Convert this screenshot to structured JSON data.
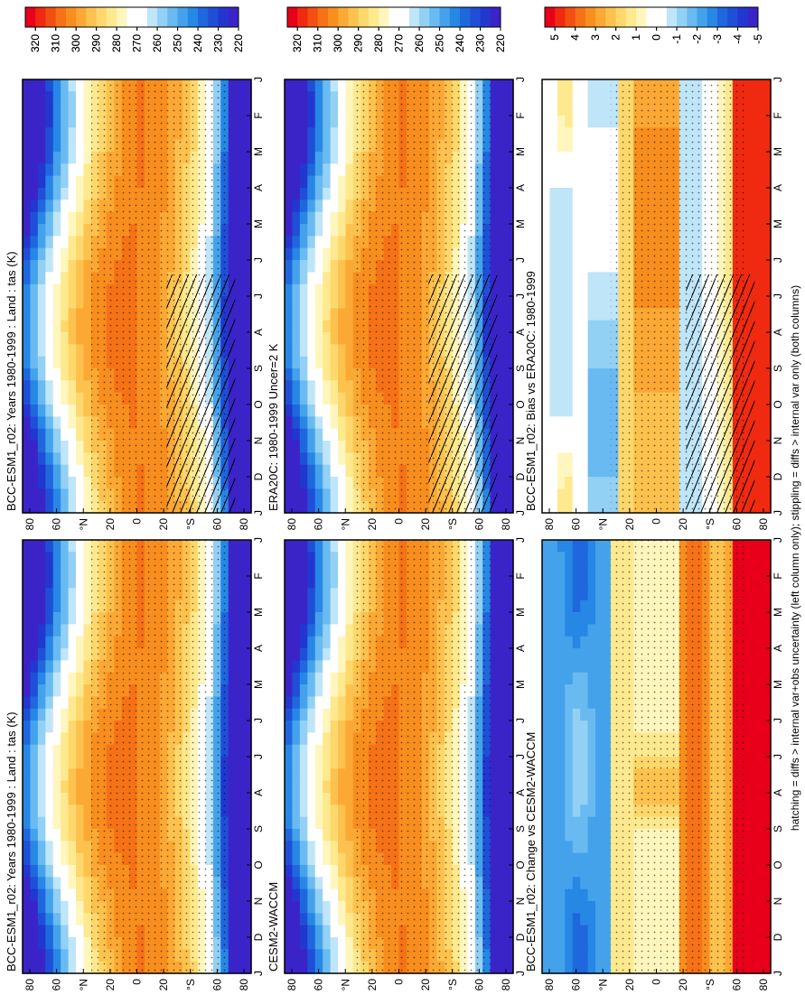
{
  "figure": {
    "footer": "hatching = diffs > internal var+obs uncertainty (left column only); stippling = diffs > internal var only (both columns)",
    "month_ticks": [
      "J",
      "F",
      "M",
      "A",
      "M",
      "J",
      "J",
      "A",
      "S",
      "O",
      "N",
      "D",
      "J"
    ],
    "lat_ticks": [
      "80",
      "60",
      "N",
      "20",
      "0",
      "20",
      "S",
      "60",
      "80"
    ],
    "lat_prefix": "°",
    "scale_abs": {
      "labels": [
        "320",
        "310",
        "300",
        "290",
        "280",
        "270",
        "260",
        "250",
        "240",
        "230",
        "220"
      ],
      "colors": [
        "#e8001a",
        "#ef2a10",
        "#f24f12",
        "#f67216",
        "#f88e1e",
        "#fba934",
        "#fdc24e",
        "#fed86c",
        "#fee98f",
        "#fff6bd",
        "#ffffff",
        "#ffffff",
        "#bfe5f8",
        "#92d0f4",
        "#69baf0",
        "#44a2eb",
        "#2787e5",
        "#1e67dd",
        "#1f4fd6",
        "#2237cf",
        "#3a24c8"
      ]
    },
    "scale_diff": {
      "labels": [
        "5",
        "4",
        "3",
        "2",
        "1",
        "0",
        "-1",
        "-2",
        "-3",
        "-4",
        "-5"
      ],
      "colors": [
        "#e8001a",
        "#ef2a10",
        "#f24f12",
        "#f67216",
        "#f88e1e",
        "#fba934",
        "#fdc24e",
        "#fed86c",
        "#fee98f",
        "#fff6bd",
        "#ffffff",
        "#ffffff",
        "#bfe5f8",
        "#92d0f4",
        "#69baf0",
        "#44a2eb",
        "#2787e5",
        "#1e67dd",
        "#1f4fd6",
        "#2237cf",
        "#3a24c8"
      ]
    }
  },
  "chart_data": [
    {
      "type": "heatmap",
      "title": "BCC-ESM1_r02: Years 1980-1999 : Land : tas (K)",
      "field": "absolute",
      "x": [
        "J",
        "F",
        "M",
        "A",
        "M",
        "J",
        "J",
        "A",
        "S",
        "O",
        "N",
        "D",
        "J"
      ],
      "y": [
        "80",
        "60",
        "N",
        "20",
        "0",
        "20",
        "S",
        "60",
        "80"
      ],
      "hatching": true,
      "stippling": true,
      "colorbar": [
        "320",
        "310",
        "300",
        "290",
        "280",
        "270",
        "260",
        "250",
        "240",
        "230",
        "220"
      ]
    },
    {
      "type": "heatmap",
      "title": "BCC-ESM1_r02: Years 1980-1999 : Land : tas (K)",
      "field": "absolute",
      "x": [
        "J",
        "F",
        "M",
        "A",
        "M",
        "J",
        "J",
        "A",
        "S",
        "O",
        "N",
        "D",
        "J"
      ],
      "y": [
        "80",
        "60",
        "N",
        "20",
        "0",
        "20",
        "S",
        "60",
        "80"
      ],
      "hatching": false,
      "stippling": true,
      "colorbar": [
        "320",
        "310",
        "300",
        "290",
        "280",
        "270",
        "260",
        "250",
        "240",
        "230",
        "220"
      ]
    },
    {
      "type": "heatmap",
      "title": "ERA20C: 1980-1999 Uncer=2 K",
      "field": "absolute",
      "x": [
        "J",
        "F",
        "M",
        "A",
        "M",
        "J",
        "J",
        "A",
        "S",
        "O",
        "N",
        "D",
        "J"
      ],
      "y": [
        "80",
        "60",
        "N",
        "20",
        "0",
        "20",
        "S",
        "60",
        "80"
      ],
      "hatching": true,
      "stippling": true,
      "colorbar": [
        "320",
        "310",
        "300",
        "290",
        "280",
        "270",
        "260",
        "250",
        "240",
        "230",
        "220"
      ]
    },
    {
      "type": "heatmap",
      "title": "CESM2-WACCM",
      "field": "absolute",
      "x": [
        "J",
        "F",
        "M",
        "A",
        "M",
        "J",
        "J",
        "A",
        "S",
        "O",
        "N",
        "D",
        "J"
      ],
      "y": [
        "80",
        "60",
        "N",
        "20",
        "0",
        "20",
        "S",
        "60",
        "80"
      ],
      "hatching": false,
      "stippling": true,
      "colorbar": [
        "320",
        "310",
        "300",
        "290",
        "280",
        "270",
        "260",
        "250",
        "240",
        "230",
        "220"
      ]
    },
    {
      "type": "heatmap",
      "title": "BCC-ESM1_r02: Bias vs ERA20C: 1980-1999",
      "field": "bias",
      "x": [
        "J",
        "F",
        "M",
        "A",
        "M",
        "J",
        "J",
        "A",
        "S",
        "O",
        "N",
        "D",
        "J"
      ],
      "y": [
        "80",
        "60",
        "N",
        "20",
        "0",
        "20",
        "S",
        "60",
        "80"
      ],
      "hatching": true,
      "stippling": true,
      "colorbar": [
        "5",
        "4",
        "3",
        "2",
        "1",
        "0",
        "-1",
        "-2",
        "-3",
        "-4",
        "-5"
      ]
    },
    {
      "type": "heatmap",
      "title": "BCC-ESM1_r02: Change vs CESM2-WACCM",
      "field": "change",
      "x": [
        "J",
        "F",
        "M",
        "A",
        "M",
        "J",
        "J",
        "A",
        "S",
        "O",
        "N",
        "D",
        "J"
      ],
      "y": [
        "80",
        "60",
        "N",
        "20",
        "0",
        "20",
        "S",
        "60",
        "80"
      ],
      "hatching": false,
      "stippling": true,
      "colorbar": [
        "5",
        "4",
        "3",
        "2",
        "1",
        "0",
        "-1",
        "-2",
        "-3",
        "-4",
        "-5"
      ]
    }
  ]
}
